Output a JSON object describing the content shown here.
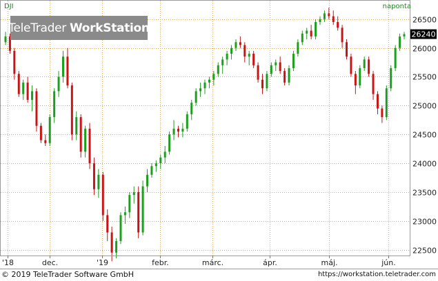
{
  "header": {
    "symbol": "DJI",
    "period": "naponta",
    "logo_light": "TeleTrader",
    "logo_bold": "WorkStation"
  },
  "footer": {
    "copyright": "© 2019 TeleTrader Software GmbH",
    "url": "https://workstation.teletrader.com"
  },
  "colors": {
    "up": "#1e9e1e",
    "down": "#c81414",
    "grid": "#e6a63a",
    "last_price_bg": "#000000"
  },
  "chart_data": {
    "type": "candlestick",
    "title": "DJI",
    "interval": "naponta",
    "y_ticks": [
      22500,
      23000,
      23500,
      24000,
      24500,
      25000,
      25500,
      26000,
      26500
    ],
    "ylim": [
      22400,
      26820
    ],
    "x_ticks": [
      "'18",
      "dec.",
      "'19",
      "febr.",
      "márc.",
      "ápr.",
      "máj.",
      "jún."
    ],
    "last_price": "26240",
    "grid": true,
    "series": [
      {
        "name": "DJI",
        "points": [
          [
            26100,
            26280,
            26050,
            26200
          ],
          [
            26200,
            26250,
            25900,
            25950
          ],
          [
            25950,
            26000,
            25450,
            25550
          ],
          [
            25550,
            25600,
            25150,
            25200
          ],
          [
            25200,
            25450,
            25100,
            25400
          ],
          [
            25400,
            25500,
            25050,
            25100
          ],
          [
            25100,
            25350,
            24900,
            25250
          ],
          [
            25250,
            25300,
            24550,
            24650
          ],
          [
            24650,
            24700,
            24350,
            24400
          ],
          [
            24400,
            24500,
            24300,
            24350
          ],
          [
            24350,
            24850,
            24300,
            24800
          ],
          [
            24800,
            25300,
            24700,
            25250
          ],
          [
            25250,
            25600,
            25150,
            25500
          ],
          [
            25500,
            25950,
            25400,
            25850
          ],
          [
            25850,
            26000,
            25300,
            25350
          ],
          [
            25350,
            25400,
            24400,
            24500
          ],
          [
            24500,
            24900,
            24400,
            24800
          ],
          [
            24800,
            24850,
            24100,
            24200
          ],
          [
            24200,
            24650,
            24100,
            24600
          ],
          [
            24600,
            24700,
            23900,
            24000
          ],
          [
            24000,
            24100,
            23450,
            23550
          ],
          [
            23550,
            23900,
            23400,
            23800
          ],
          [
            23800,
            23850,
            23000,
            23100
          ],
          [
            23100,
            23200,
            22650,
            22800
          ],
          [
            22800,
            22900,
            22300,
            22450
          ],
          [
            22450,
            22700,
            22350,
            22650
          ],
          [
            22650,
            23150,
            22600,
            23100
          ],
          [
            23100,
            23250,
            22950,
            23150
          ],
          [
            23150,
            23500,
            23050,
            23450
          ],
          [
            23450,
            23600,
            23300,
            23500
          ],
          [
            23500,
            23600,
            22700,
            22800
          ],
          [
            22800,
            23700,
            22750,
            23600
          ],
          [
            23600,
            23900,
            23500,
            23800
          ],
          [
            23800,
            24000,
            23750,
            23950
          ],
          [
            23950,
            24050,
            23850,
            24000
          ],
          [
            24000,
            24150,
            23900,
            24100
          ],
          [
            24100,
            24300,
            24000,
            24200
          ],
          [
            24200,
            24550,
            24150,
            24500
          ],
          [
            24500,
            24750,
            24400,
            24600
          ],
          [
            24600,
            24650,
            24450,
            24550
          ],
          [
            24550,
            24700,
            24450,
            24600
          ],
          [
            24600,
            24900,
            24550,
            24850
          ],
          [
            24850,
            25100,
            24750,
            25050
          ],
          [
            25050,
            25300,
            25000,
            25250
          ],
          [
            25250,
            25400,
            25150,
            25300
          ],
          [
            25300,
            25450,
            25200,
            25400
          ],
          [
            25400,
            25500,
            25300,
            25450
          ],
          [
            25450,
            25600,
            25350,
            25550
          ],
          [
            25550,
            25750,
            25500,
            25700
          ],
          [
            25700,
            25850,
            25550,
            25800
          ],
          [
            25800,
            25950,
            25700,
            25900
          ],
          [
            25900,
            26050,
            25800,
            26000
          ],
          [
            26000,
            26150,
            25950,
            26100
          ],
          [
            26100,
            26200,
            26000,
            26050
          ],
          [
            26050,
            26100,
            25750,
            25850
          ],
          [
            25850,
            25950,
            25700,
            25900
          ],
          [
            25900,
            25950,
            25650,
            25700
          ],
          [
            25700,
            25750,
            25400,
            25450
          ],
          [
            25450,
            25550,
            25200,
            25300
          ],
          [
            25300,
            25600,
            25250,
            25550
          ],
          [
            25550,
            25750,
            25500,
            25700
          ],
          [
            25700,
            25800,
            25600,
            25750
          ],
          [
            25750,
            25850,
            25550,
            25600
          ],
          [
            25600,
            25650,
            25350,
            25400
          ],
          [
            25400,
            25700,
            25350,
            25650
          ],
          [
            25650,
            25950,
            25600,
            25900
          ],
          [
            25900,
            26150,
            25850,
            26100
          ],
          [
            26100,
            26300,
            26050,
            26250
          ],
          [
            26250,
            26350,
            26150,
            26300
          ],
          [
            26300,
            26400,
            26150,
            26200
          ],
          [
            26200,
            26500,
            26150,
            26450
          ],
          [
            26450,
            26550,
            26400,
            26500
          ],
          [
            26500,
            26650,
            26450,
            26600
          ],
          [
            26600,
            26700,
            26500,
            26550
          ],
          [
            26550,
            26650,
            26400,
            26450
          ],
          [
            26450,
            26550,
            26300,
            26350
          ],
          [
            26350,
            26400,
            26000,
            26100
          ],
          [
            26100,
            26150,
            25800,
            25850
          ],
          [
            25850,
            25900,
            25500,
            25550
          ],
          [
            25550,
            25600,
            25200,
            25350
          ],
          [
            25350,
            25700,
            25300,
            25650
          ],
          [
            25650,
            25850,
            25600,
            25800
          ],
          [
            25800,
            25850,
            25500,
            25550
          ],
          [
            25550,
            25600,
            25100,
            25200
          ],
          [
            25200,
            25250,
            24850,
            24950
          ],
          [
            24950,
            25000,
            24700,
            24800
          ],
          [
            24800,
            25350,
            24750,
            25300
          ],
          [
            25300,
            25700,
            25250,
            25650
          ],
          [
            25650,
            26050,
            25600,
            26000
          ],
          [
            26000,
            26250,
            25950,
            26200
          ],
          [
            26200,
            26280,
            26150,
            26240
          ]
        ]
      }
    ]
  }
}
